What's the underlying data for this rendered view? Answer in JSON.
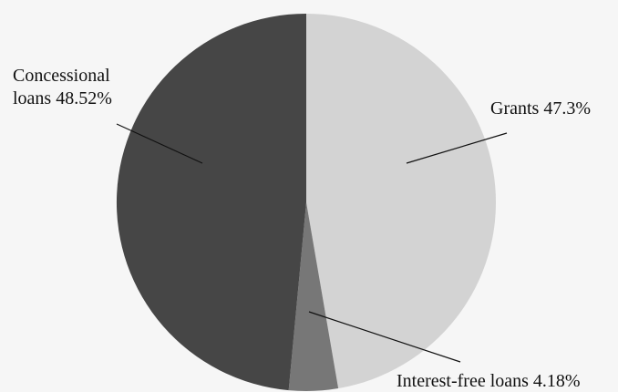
{
  "chart_data": {
    "type": "pie",
    "start_angle_deg": 0,
    "direction": "clockwise",
    "slices": [
      {
        "label_lines": [
          "Grants 47.3%"
        ],
        "value": 47.3,
        "color": "#d3d3d3"
      },
      {
        "label_lines": [
          "Interest-free loans 4.18%"
        ],
        "value": 4.18,
        "color": "#777777"
      },
      {
        "label_lines": [
          "Concessional",
          "loans 48.52%"
        ],
        "value": 48.52,
        "color": "#464646"
      }
    ]
  }
}
